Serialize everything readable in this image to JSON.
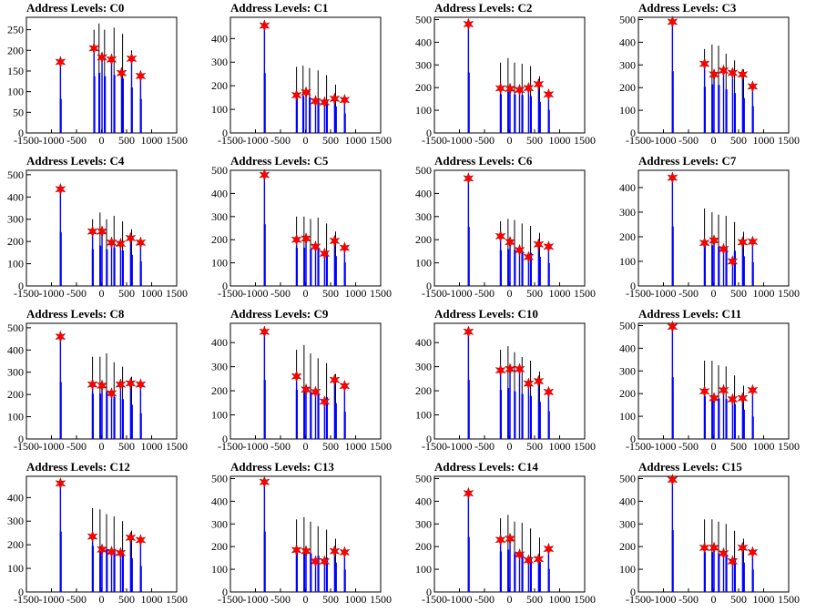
{
  "figure": {
    "xlim": [
      -1500,
      1500
    ],
    "x_ticks": [
      -1500,
      -1000,
      -500,
      0,
      500,
      1000,
      1500
    ],
    "colors": {
      "bars": "#0000ff",
      "markers": "#ff0000",
      "axes": "#000000"
    }
  },
  "chart_data": [
    {
      "type": "bar",
      "title": "Address Levels: C0",
      "ylim": [
        0,
        280
      ],
      "yticks": [
        0,
        50,
        100,
        150,
        200,
        250
      ],
      "bars": [
        {
          "x": -820,
          "value": 150
        },
        {
          "x": -150,
          "value": 250
        },
        {
          "x": -50,
          "value": 265
        },
        {
          "x": 60,
          "value": 250
        },
        {
          "x": 250,
          "value": 255
        },
        {
          "x": 420,
          "value": 240
        },
        {
          "x": 600,
          "value": 200
        },
        {
          "x": 780,
          "value": 150
        }
      ],
      "peaks": [
        {
          "x": -820,
          "value": 172
        },
        {
          "x": -150,
          "value": 205
        },
        {
          "x": 10,
          "value": 183
        },
        {
          "x": 200,
          "value": 178
        },
        {
          "x": 400,
          "value": 145
        },
        {
          "x": 600,
          "value": 180
        },
        {
          "x": 780,
          "value": 138
        }
      ]
    },
    {
      "type": "bar",
      "title": "Address Levels: C1",
      "ylim": [
        0,
        490
      ],
      "yticks": [
        0,
        100,
        200,
        300,
        400
      ],
      "bars": [
        {
          "x": -820,
          "value": 460
        },
        {
          "x": -180,
          "value": 280
        },
        {
          "x": -50,
          "value": 285
        },
        {
          "x": 80,
          "value": 275
        },
        {
          "x": 250,
          "value": 265
        },
        {
          "x": 420,
          "value": 245
        },
        {
          "x": 600,
          "value": 205
        },
        {
          "x": 780,
          "value": 150
        }
      ],
      "peaks": [
        {
          "x": -820,
          "value": 455
        },
        {
          "x": -180,
          "value": 160
        },
        {
          "x": 10,
          "value": 172
        },
        {
          "x": 200,
          "value": 135
        },
        {
          "x": 380,
          "value": 130
        },
        {
          "x": 580,
          "value": 145
        },
        {
          "x": 780,
          "value": 140
        }
      ]
    },
    {
      "type": "bar",
      "title": "Address Levels: C2",
      "ylim": [
        0,
        510
      ],
      "yticks": [
        0,
        100,
        200,
        300,
        400,
        500
      ],
      "bars": [
        {
          "x": -820,
          "value": 485
        },
        {
          "x": -180,
          "value": 310
        },
        {
          "x": -30,
          "value": 330
        },
        {
          "x": 100,
          "value": 310
        },
        {
          "x": 250,
          "value": 305
        },
        {
          "x": 420,
          "value": 295
        },
        {
          "x": 600,
          "value": 250
        },
        {
          "x": 780,
          "value": 185
        }
      ],
      "peaks": [
        {
          "x": -820,
          "value": 480
        },
        {
          "x": -180,
          "value": 197
        },
        {
          "x": 10,
          "value": 195
        },
        {
          "x": 200,
          "value": 190
        },
        {
          "x": 380,
          "value": 198
        },
        {
          "x": 580,
          "value": 215
        },
        {
          "x": 780,
          "value": 170
        }
      ]
    },
    {
      "type": "bar",
      "title": "Address Levels: C3",
      "ylim": [
        0,
        510
      ],
      "yticks": [
        0,
        100,
        200,
        300,
        400,
        500
      ],
      "bars": [
        {
          "x": -820,
          "value": 495
        },
        {
          "x": -180,
          "value": 370
        },
        {
          "x": -30,
          "value": 390
        },
        {
          "x": 100,
          "value": 385
        },
        {
          "x": 250,
          "value": 350
        },
        {
          "x": 420,
          "value": 320
        },
        {
          "x": 600,
          "value": 280
        },
        {
          "x": 780,
          "value": 215
        }
      ],
      "peaks": [
        {
          "x": -820,
          "value": 490
        },
        {
          "x": -180,
          "value": 305
        },
        {
          "x": 10,
          "value": 258
        },
        {
          "x": 200,
          "value": 275
        },
        {
          "x": 380,
          "value": 265
        },
        {
          "x": 580,
          "value": 258
        },
        {
          "x": 780,
          "value": 205
        }
      ]
    },
    {
      "type": "bar",
      "title": "Address Levels: C4",
      "ylim": [
        0,
        520
      ],
      "yticks": [
        0,
        100,
        200,
        300,
        400,
        500
      ],
      "bars": [
        {
          "x": -820,
          "value": 440
        },
        {
          "x": -180,
          "value": 300
        },
        {
          "x": -30,
          "value": 330
        },
        {
          "x": 100,
          "value": 300
        },
        {
          "x": 250,
          "value": 315
        },
        {
          "x": 420,
          "value": 290
        },
        {
          "x": 600,
          "value": 255
        },
        {
          "x": 780,
          "value": 200
        }
      ],
      "peaks": [
        {
          "x": -820,
          "value": 435
        },
        {
          "x": -180,
          "value": 245
        },
        {
          "x": 10,
          "value": 245
        },
        {
          "x": 200,
          "value": 195
        },
        {
          "x": 380,
          "value": 190
        },
        {
          "x": 580,
          "value": 215
        },
        {
          "x": 780,
          "value": 195
        }
      ]
    },
    {
      "type": "bar",
      "title": "Address Levels: C5",
      "ylim": [
        0,
        500
      ],
      "yticks": [
        0,
        100,
        200,
        300,
        400,
        500
      ],
      "bars": [
        {
          "x": -820,
          "value": 485
        },
        {
          "x": -180,
          "value": 300
        },
        {
          "x": -30,
          "value": 300
        },
        {
          "x": 100,
          "value": 290
        },
        {
          "x": 250,
          "value": 295
        },
        {
          "x": 420,
          "value": 270
        },
        {
          "x": 600,
          "value": 235
        },
        {
          "x": 780,
          "value": 185
        }
      ],
      "peaks": [
        {
          "x": -820,
          "value": 480
        },
        {
          "x": -180,
          "value": 200
        },
        {
          "x": 10,
          "value": 205
        },
        {
          "x": 200,
          "value": 170
        },
        {
          "x": 380,
          "value": 140
        },
        {
          "x": 580,
          "value": 195
        },
        {
          "x": 780,
          "value": 165
        }
      ]
    },
    {
      "type": "bar",
      "title": "Address Levels: C6",
      "ylim": [
        0,
        500
      ],
      "yticks": [
        0,
        100,
        200,
        300,
        400,
        500
      ],
      "bars": [
        {
          "x": -820,
          "value": 465
        },
        {
          "x": -180,
          "value": 280
        },
        {
          "x": -30,
          "value": 290
        },
        {
          "x": 100,
          "value": 285
        },
        {
          "x": 250,
          "value": 270
        },
        {
          "x": 420,
          "value": 260
        },
        {
          "x": 600,
          "value": 230
        },
        {
          "x": 780,
          "value": 180
        }
      ],
      "peaks": [
        {
          "x": -820,
          "value": 465
        },
        {
          "x": -180,
          "value": 215
        },
        {
          "x": 10,
          "value": 190
        },
        {
          "x": 200,
          "value": 155
        },
        {
          "x": 380,
          "value": 125
        },
        {
          "x": 580,
          "value": 180
        },
        {
          "x": 780,
          "value": 170
        }
      ]
    },
    {
      "type": "bar",
      "title": "Address Levels: C7",
      "ylim": [
        0,
        470
      ],
      "yticks": [
        0,
        100,
        200,
        300,
        400
      ],
      "bars": [
        {
          "x": -820,
          "value": 440
        },
        {
          "x": -180,
          "value": 315
        },
        {
          "x": -30,
          "value": 300
        },
        {
          "x": 100,
          "value": 290
        },
        {
          "x": 250,
          "value": 285
        },
        {
          "x": 420,
          "value": 260
        },
        {
          "x": 600,
          "value": 220
        },
        {
          "x": 780,
          "value": 175
        }
      ],
      "peaks": [
        {
          "x": -820,
          "value": 440
        },
        {
          "x": -180,
          "value": 175
        },
        {
          "x": 10,
          "value": 185
        },
        {
          "x": 200,
          "value": 150
        },
        {
          "x": 380,
          "value": 100
        },
        {
          "x": 580,
          "value": 178
        },
        {
          "x": 780,
          "value": 180
        }
      ]
    },
    {
      "type": "bar",
      "title": "Address Levels: C8",
      "ylim": [
        0,
        520
      ],
      "yticks": [
        0,
        100,
        200,
        300,
        400,
        500
      ],
      "bars": [
        {
          "x": -820,
          "value": 465
        },
        {
          "x": -180,
          "value": 370
        },
        {
          "x": -30,
          "value": 370
        },
        {
          "x": 100,
          "value": 385
        },
        {
          "x": 250,
          "value": 345
        },
        {
          "x": 420,
          "value": 325
        },
        {
          "x": 600,
          "value": 280
        },
        {
          "x": 780,
          "value": 210
        }
      ],
      "peaks": [
        {
          "x": -820,
          "value": 460
        },
        {
          "x": -180,
          "value": 245
        },
        {
          "x": 10,
          "value": 240
        },
        {
          "x": 200,
          "value": 205
        },
        {
          "x": 380,
          "value": 245
        },
        {
          "x": 580,
          "value": 250
        },
        {
          "x": 780,
          "value": 245
        }
      ]
    },
    {
      "type": "bar",
      "title": "Address Levels: C9",
      "ylim": [
        0,
        480
      ],
      "yticks": [
        0,
        100,
        200,
        300,
        400
      ],
      "bars": [
        {
          "x": -820,
          "value": 445
        },
        {
          "x": -180,
          "value": 370
        },
        {
          "x": -30,
          "value": 390
        },
        {
          "x": 100,
          "value": 355
        },
        {
          "x": 250,
          "value": 335
        },
        {
          "x": 420,
          "value": 315
        },
        {
          "x": 600,
          "value": 270
        },
        {
          "x": 780,
          "value": 205
        }
      ],
      "peaks": [
        {
          "x": -820,
          "value": 445
        },
        {
          "x": -180,
          "value": 260
        },
        {
          "x": 10,
          "value": 205
        },
        {
          "x": 200,
          "value": 195
        },
        {
          "x": 380,
          "value": 155
        },
        {
          "x": 580,
          "value": 245
        },
        {
          "x": 780,
          "value": 220
        }
      ]
    },
    {
      "type": "bar",
      "title": "Address Levels: C10",
      "ylim": [
        0,
        480
      ],
      "yticks": [
        0,
        100,
        200,
        300,
        400
      ],
      "bars": [
        {
          "x": -820,
          "value": 445
        },
        {
          "x": -180,
          "value": 370
        },
        {
          "x": -30,
          "value": 385
        },
        {
          "x": 100,
          "value": 360
        },
        {
          "x": 250,
          "value": 340
        },
        {
          "x": 420,
          "value": 325
        },
        {
          "x": 600,
          "value": 280
        },
        {
          "x": 780,
          "value": 210
        }
      ],
      "peaks": [
        {
          "x": -820,
          "value": 445
        },
        {
          "x": -180,
          "value": 285
        },
        {
          "x": 10,
          "value": 290
        },
        {
          "x": 200,
          "value": 290
        },
        {
          "x": 380,
          "value": 230
        },
        {
          "x": 580,
          "value": 240
        },
        {
          "x": 780,
          "value": 195
        }
      ]
    },
    {
      "type": "bar",
      "title": "Address Levels: C11",
      "ylim": [
        0,
        510
      ],
      "yticks": [
        0,
        100,
        200,
        300,
        400,
        500
      ],
      "bars": [
        {
          "x": -820,
          "value": 495
        },
        {
          "x": -180,
          "value": 345
        },
        {
          "x": -30,
          "value": 345
        },
        {
          "x": 100,
          "value": 325
        },
        {
          "x": 250,
          "value": 320
        },
        {
          "x": 420,
          "value": 280
        },
        {
          "x": 600,
          "value": 235
        },
        {
          "x": 780,
          "value": 180
        }
      ],
      "peaks": [
        {
          "x": -820,
          "value": 495
        },
        {
          "x": -180,
          "value": 210
        },
        {
          "x": 10,
          "value": 180
        },
        {
          "x": 200,
          "value": 215
        },
        {
          "x": 380,
          "value": 175
        },
        {
          "x": 580,
          "value": 180
        },
        {
          "x": 780,
          "value": 215
        }
      ]
    },
    {
      "type": "bar",
      "title": "Address Levels: C12",
      "ylim": [
        0,
        490
      ],
      "yticks": [
        0,
        100,
        200,
        300,
        400
      ],
      "bars": [
        {
          "x": -820,
          "value": 465
        },
        {
          "x": -180,
          "value": 355
        },
        {
          "x": -30,
          "value": 350
        },
        {
          "x": 100,
          "value": 330
        },
        {
          "x": 250,
          "value": 320
        },
        {
          "x": 420,
          "value": 300
        },
        {
          "x": 600,
          "value": 260
        },
        {
          "x": 780,
          "value": 200
        }
      ],
      "peaks": [
        {
          "x": -820,
          "value": 460
        },
        {
          "x": -180,
          "value": 235
        },
        {
          "x": 10,
          "value": 180
        },
        {
          "x": 200,
          "value": 170
        },
        {
          "x": 380,
          "value": 165
        },
        {
          "x": 580,
          "value": 230
        },
        {
          "x": 780,
          "value": 220
        }
      ]
    },
    {
      "type": "bar",
      "title": "Address Levels: C13",
      "ylim": [
        0,
        510
      ],
      "yticks": [
        0,
        100,
        200,
        300,
        400,
        500
      ],
      "bars": [
        {
          "x": -820,
          "value": 485
        },
        {
          "x": -180,
          "value": 320
        },
        {
          "x": -30,
          "value": 330
        },
        {
          "x": 100,
          "value": 310
        },
        {
          "x": 250,
          "value": 290
        },
        {
          "x": 420,
          "value": 275
        },
        {
          "x": 600,
          "value": 235
        },
        {
          "x": 780,
          "value": 180
        }
      ],
      "peaks": [
        {
          "x": -820,
          "value": 485
        },
        {
          "x": -180,
          "value": 185
        },
        {
          "x": 10,
          "value": 180
        },
        {
          "x": 200,
          "value": 135
        },
        {
          "x": 380,
          "value": 135
        },
        {
          "x": 580,
          "value": 180
        },
        {
          "x": 780,
          "value": 175
        }
      ]
    },
    {
      "type": "bar",
      "title": "Address Levels: C14",
      "ylim": [
        0,
        510
      ],
      "yticks": [
        0,
        100,
        200,
        300,
        400,
        500
      ],
      "bars": [
        {
          "x": -820,
          "value": 440
        },
        {
          "x": -180,
          "value": 325
        },
        {
          "x": -30,
          "value": 340
        },
        {
          "x": 100,
          "value": 310
        },
        {
          "x": 250,
          "value": 305
        },
        {
          "x": 420,
          "value": 280
        },
        {
          "x": 600,
          "value": 240
        },
        {
          "x": 780,
          "value": 185
        }
      ],
      "peaks": [
        {
          "x": -820,
          "value": 435
        },
        {
          "x": -180,
          "value": 230
        },
        {
          "x": 10,
          "value": 235
        },
        {
          "x": 200,
          "value": 165
        },
        {
          "x": 380,
          "value": 140
        },
        {
          "x": 580,
          "value": 145
        },
        {
          "x": 780,
          "value": 190
        }
      ]
    },
    {
      "type": "bar",
      "title": "Address Levels: C15",
      "ylim": [
        0,
        510
      ],
      "yticks": [
        0,
        100,
        200,
        300,
        400,
        500
      ],
      "bars": [
        {
          "x": -820,
          "value": 495
        },
        {
          "x": -180,
          "value": 320
        },
        {
          "x": -30,
          "value": 320
        },
        {
          "x": 100,
          "value": 310
        },
        {
          "x": 250,
          "value": 300
        },
        {
          "x": 420,
          "value": 270
        },
        {
          "x": 600,
          "value": 235
        },
        {
          "x": 780,
          "value": 180
        }
      ],
      "peaks": [
        {
          "x": -820,
          "value": 495
        },
        {
          "x": -180,
          "value": 195
        },
        {
          "x": 10,
          "value": 195
        },
        {
          "x": 200,
          "value": 170
        },
        {
          "x": 380,
          "value": 135
        },
        {
          "x": 580,
          "value": 195
        },
        {
          "x": 780,
          "value": 175
        }
      ]
    }
  ]
}
